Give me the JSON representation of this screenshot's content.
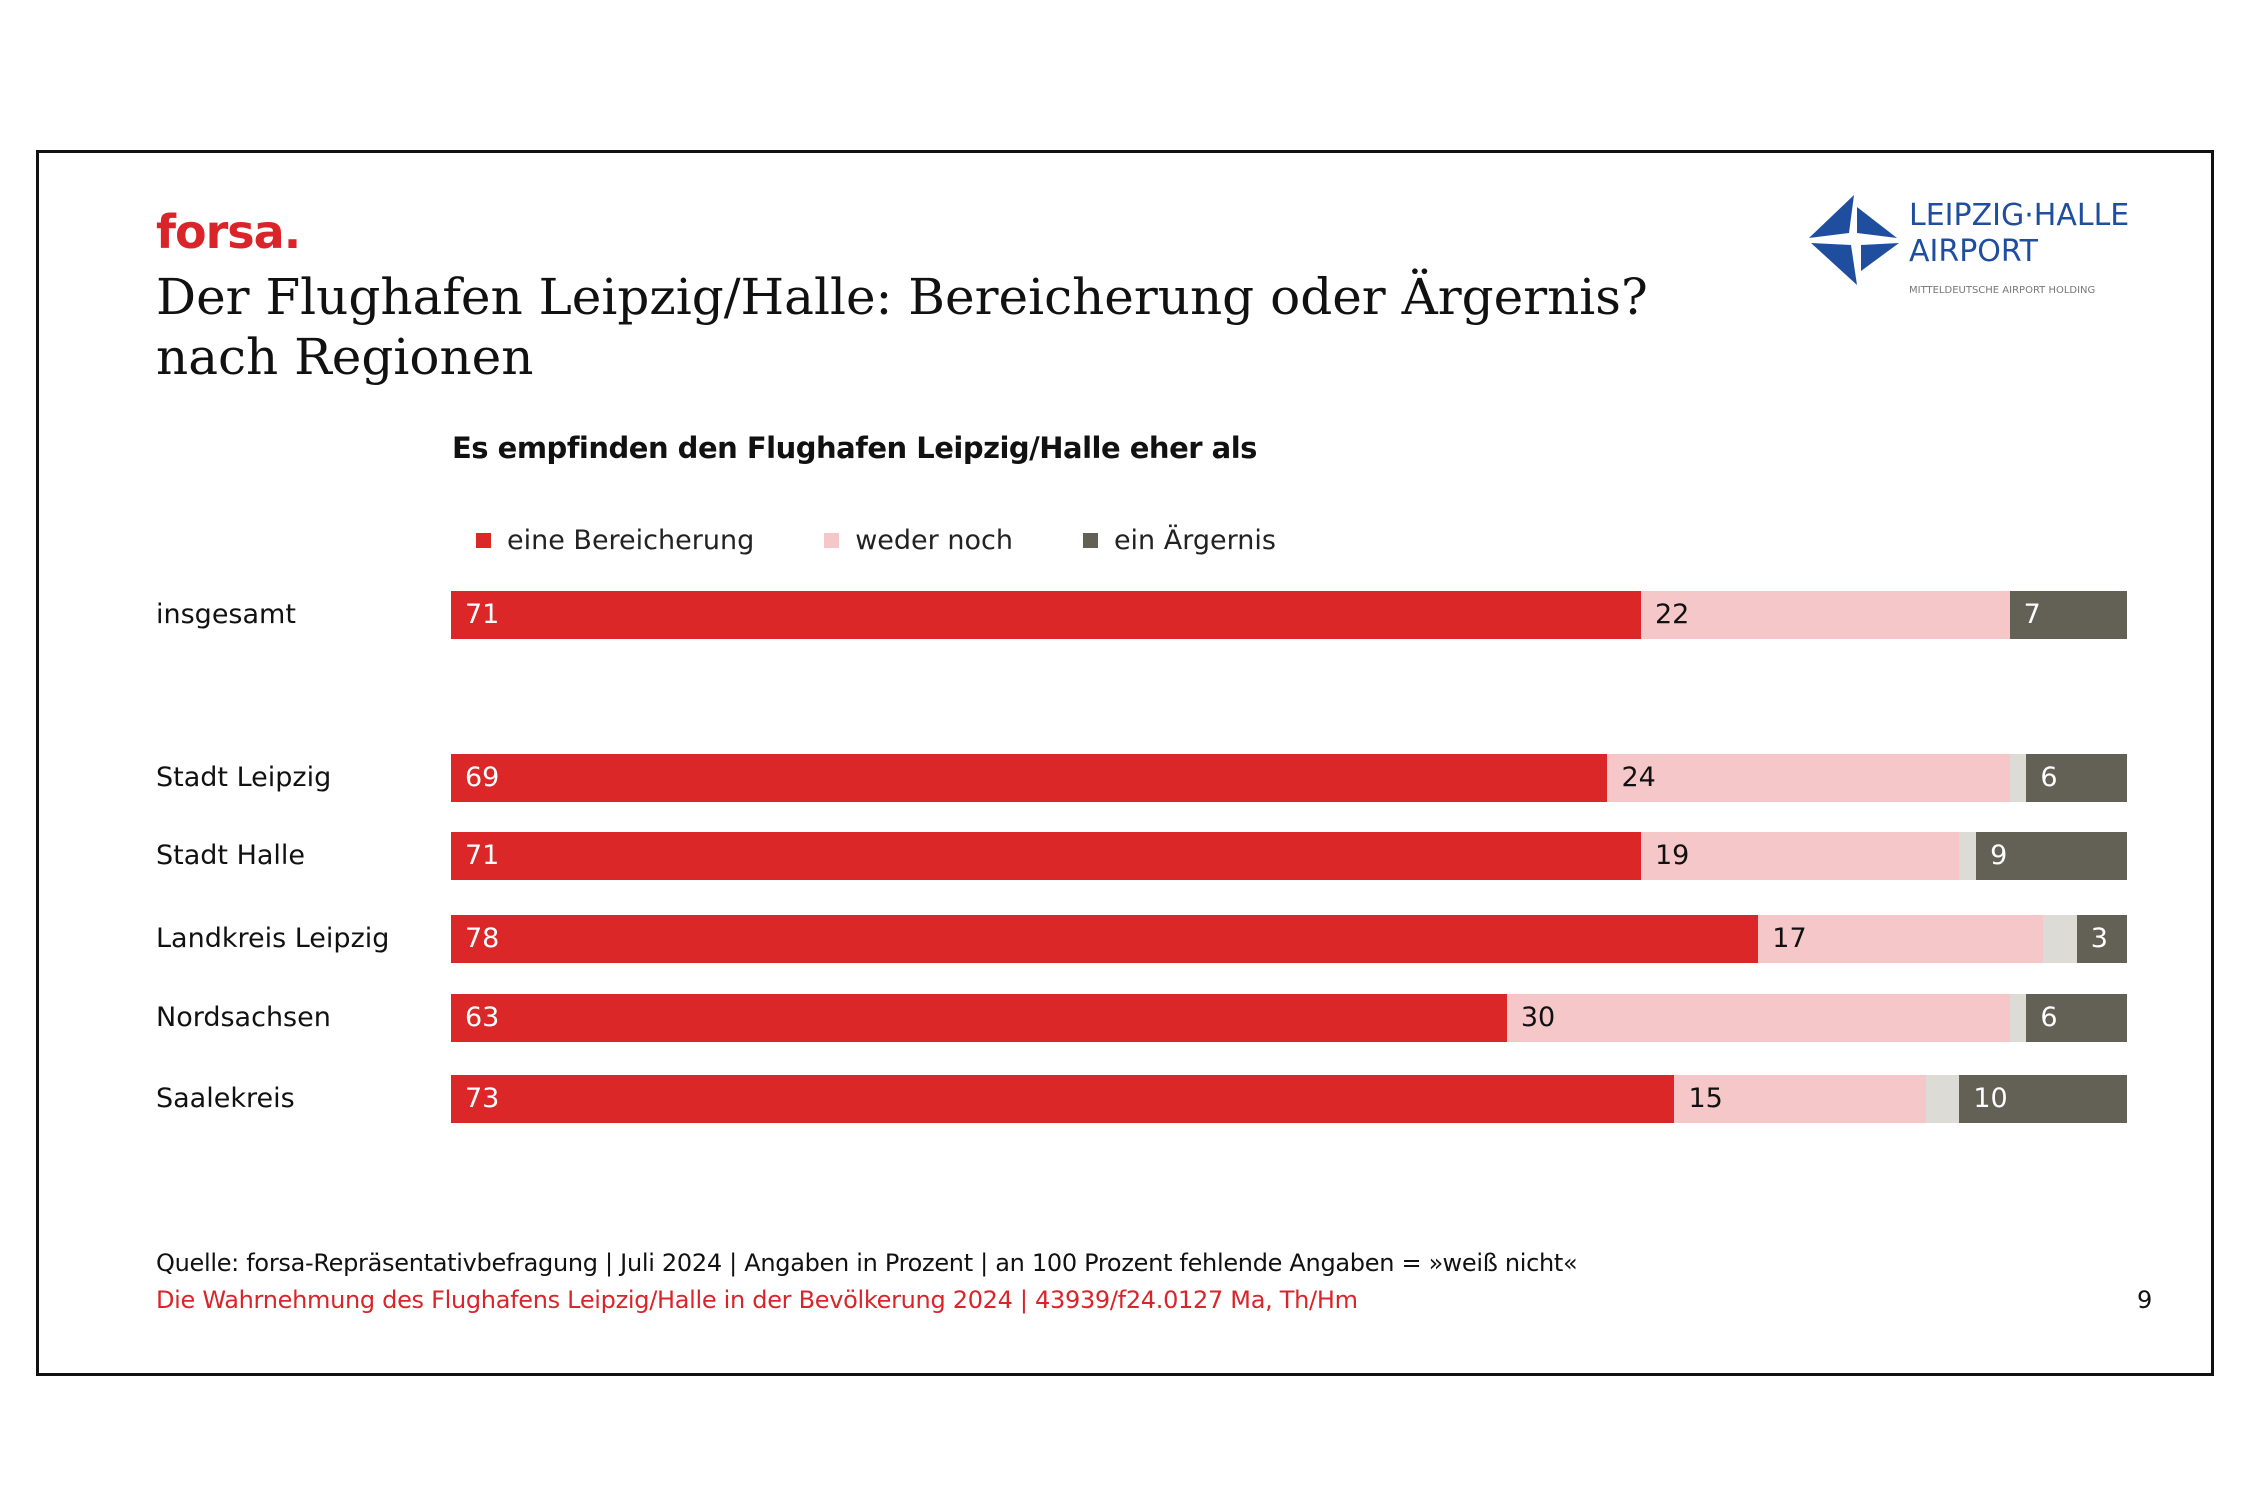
{
  "brand": "forsa.",
  "title_line1": "Der Flughafen Leipzig/Halle: Bereicherung oder Ärgernis?",
  "title_line2": "nach Regionen",
  "logo": {
    "line1": "LEIPZIG·HALLE",
    "line2": "AIRPORT",
    "line3": "MITTELDEUTSCHE AIRPORT HOLDING",
    "color": "#1f4e9e"
  },
  "source": "Quelle: forsa-Repräsentativbefragung | Juli 2024 | Angaben in Prozent | an 100 Prozent fehlende Angaben = »weiß nicht«",
  "footer": "Die Wahrnehmung des Flughafens Leipzig/Halle in der Bevölkerung 2024 | 43939/f24.0127 Ma, Th/Hm",
  "page_number": "9",
  "chart_data": {
    "type": "bar",
    "orientation": "horizontal-stacked-100",
    "subtitle": "Es empfinden den Flughafen Leipzig/Halle eher als",
    "categories": [
      "insgesamt",
      "Stadt Leipzig",
      "Stadt Halle",
      "Landkreis Leipzig",
      "Nordsachsen",
      "Saalekreis"
    ],
    "series": [
      {
        "name": "eine Bereicherung",
        "color": "#dc2729",
        "values": [
          71,
          69,
          71,
          78,
          63,
          73
        ]
      },
      {
        "name": "weder noch",
        "color": "#f5c7c8",
        "values": [
          22,
          24,
          19,
          17,
          30,
          15
        ]
      },
      {
        "name": "ein Ärgernis",
        "color": "#636155",
        "values": [
          7,
          6,
          9,
          3,
          6,
          10
        ]
      }
    ],
    "remainder_color": "#dcdbd6",
    "xlim": [
      0,
      100
    ],
    "legend_position": "top-left",
    "grid": false
  }
}
